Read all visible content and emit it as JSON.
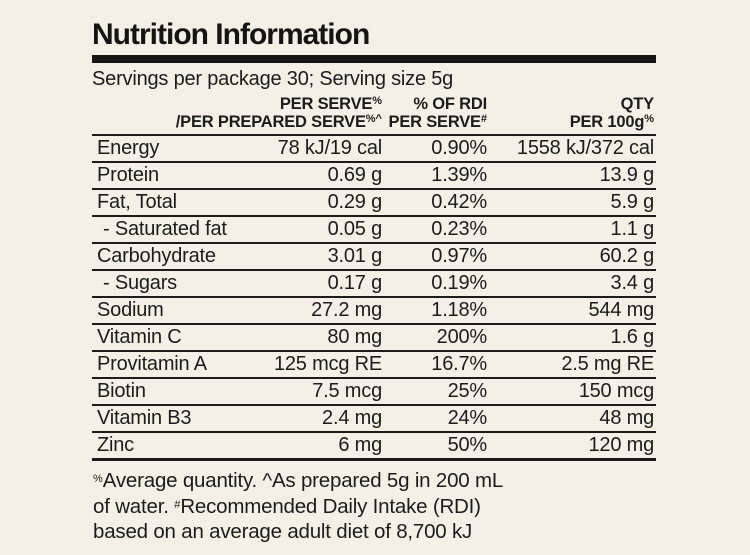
{
  "title": "Nutrition Information",
  "servings_line": "Servings per package 30; Serving size 5g",
  "table": {
    "header": {
      "per_serve_line1": "PER SERVE",
      "per_serve_line1_sup": "%",
      "per_serve_line2": "/PER PREPARED SERVE",
      "per_serve_line2_sup": "%^",
      "rdi_line1": "% OF RDI",
      "rdi_line2": "PER SERVE",
      "rdi_line2_sup": "#",
      "qty_line1": "QTY",
      "qty_line2": "PER 100g",
      "qty_line2_sup": "%"
    },
    "rows": [
      {
        "name": "Energy",
        "per_serve": "78 kJ/19 cal",
        "rdi": "0.90%",
        "per_100g": "1558 kJ/372 cal"
      },
      {
        "name": "Protein",
        "per_serve": "0.69 g",
        "rdi": "1.39%",
        "per_100g": "13.9 g"
      },
      {
        "name": "Fat, Total",
        "per_serve": "0.29 g",
        "rdi": "0.42%",
        "per_100g": "5.9 g"
      },
      {
        "name": "- Saturated fat",
        "per_serve": "0.05 g",
        "rdi": "0.23%",
        "per_100g": "1.1 g"
      },
      {
        "name": "Carbohydrate",
        "per_serve": "3.01 g",
        "rdi": "0.97%",
        "per_100g": "60.2 g"
      },
      {
        "name": "- Sugars",
        "per_serve": "0.17 g",
        "rdi": "0.19%",
        "per_100g": "3.4 g"
      },
      {
        "name": "Sodium",
        "per_serve": "27.2 mg",
        "rdi": "1.18%",
        "per_100g": "544 mg"
      },
      {
        "name": "Vitamin C",
        "per_serve": "80 mg",
        "rdi": "200%",
        "per_100g": "1.6 g"
      },
      {
        "name": "Provitamin A",
        "per_serve": "125 mcg RE",
        "rdi": "16.7%",
        "per_100g": "2.5 mg RE"
      },
      {
        "name": "Biotin",
        "per_serve": "7.5 mcg",
        "rdi": "25%",
        "per_100g": "150 mcg"
      },
      {
        "name": "Vitamin B3",
        "per_serve": "2.4 mg",
        "rdi": "24%",
        "per_100g": "48 mg"
      },
      {
        "name": "Zinc",
        "per_serve": "6 mg",
        "rdi": "50%",
        "per_100g": "120 mg"
      }
    ]
  },
  "footnote": {
    "line1_sup": "%",
    "line1": "Average quantity. ^As prepared 5g in 200 mL",
    "line2_pre": "of water. ",
    "line2_sup": "#",
    "line2_post": "Recommended Daily Intake (RDI)",
    "line3": "based on an average adult diet of 8,700 kJ"
  },
  "colors": {
    "background": "#f4f0e7",
    "ink": "#1d1c1a"
  }
}
